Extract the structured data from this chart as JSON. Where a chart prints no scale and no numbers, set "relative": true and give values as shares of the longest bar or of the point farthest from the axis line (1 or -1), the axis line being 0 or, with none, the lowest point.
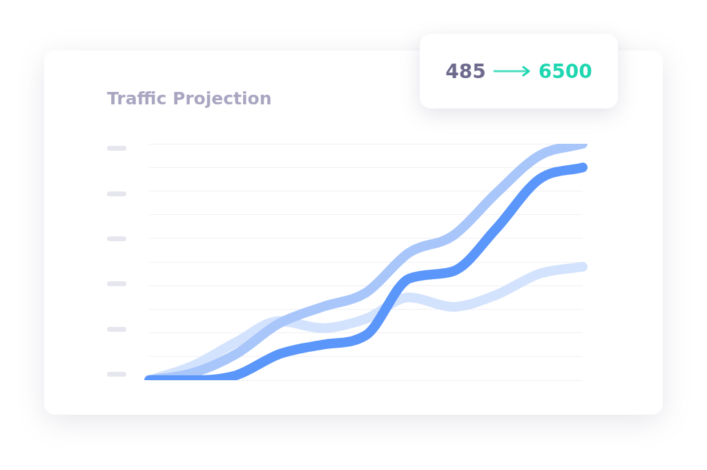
{
  "chart_data": {
    "type": "line",
    "title": "Traffic Projection",
    "relative": true,
    "grid": "y",
    "legend": false,
    "marker": "none",
    "line_style": "solid",
    "categories": [
      null,
      null,
      null,
      null,
      null,
      null,
      null,
      null,
      null,
      null,
      null
    ],
    "annotations": [
      "485",
      "6500"
    ],
    "series": [
      {
        "color": "#5b96fb",
        "values": [
          0,
          0,
          0.02,
          0.11,
          0.15,
          0.19,
          0.43,
          0.46,
          0.64,
          0.85,
          0.9
        ]
      },
      {
        "color": "#a9c6fb",
        "values": [
          0,
          0.03,
          0.11,
          0.24,
          0.31,
          0.37,
          0.54,
          0.61,
          0.79,
          0.95,
          1
        ]
      },
      {
        "color": "#d3e2fd",
        "values": [
          0,
          0.06,
          0.16,
          0.25,
          0.22,
          0.26,
          0.35,
          0.31,
          0.36,
          0.45,
          0.48
        ]
      }
    ]
  }
}
